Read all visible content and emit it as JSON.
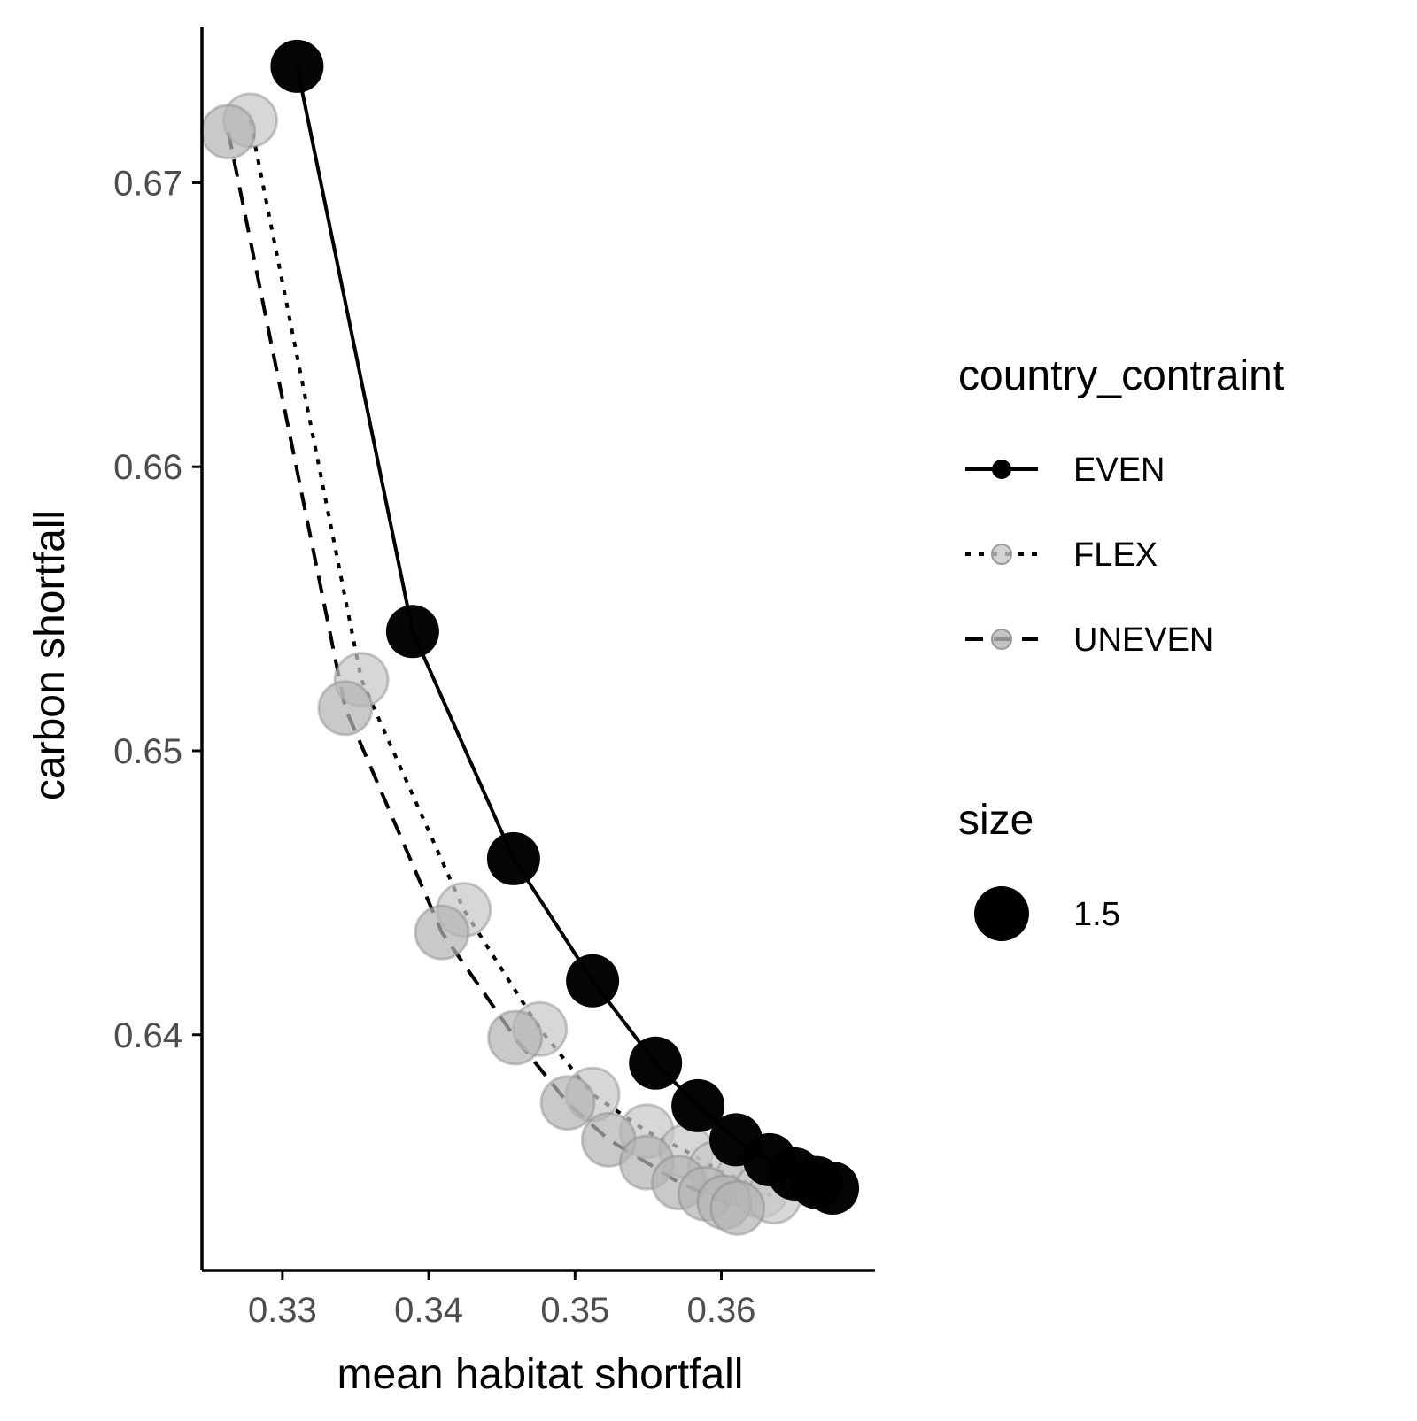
{
  "chart_data": {
    "type": "line",
    "xlabel": "mean habitat shortfall",
    "ylabel": "carbon shortfall",
    "xlim": [
      0.3245,
      0.3705
    ],
    "ylim": [
      0.6317,
      0.6755
    ],
    "xticks": [
      "0.33",
      "0.34",
      "0.35",
      "0.36"
    ],
    "yticks": [
      "0.64",
      "0.65",
      "0.66",
      "0.67"
    ],
    "grid": false,
    "series": [
      {
        "name": "EVEN",
        "linestyle": "solid",
        "color": "#000000",
        "x": [
          0.331,
          0.3389,
          0.3458,
          0.3512,
          0.3555,
          0.3584,
          0.361,
          0.3633,
          0.365,
          0.3665,
          0.3676
        ],
        "y": [
          0.6741,
          0.6542,
          0.6462,
          0.6419,
          0.639,
          0.6375,
          0.6363,
          0.6356,
          0.6351,
          0.6348,
          0.6346
        ]
      },
      {
        "name": "FLEX",
        "linestyle": "dotted",
        "color": "#c8c8c8",
        "x": [
          0.3278,
          0.3354,
          0.3424,
          0.3476,
          0.3512,
          0.3549,
          0.3576,
          0.3596,
          0.3614,
          0.3627,
          0.3636
        ],
        "y": [
          0.6722,
          0.6525,
          0.6444,
          0.6402,
          0.6379,
          0.6366,
          0.6359,
          0.6353,
          0.6349,
          0.6345,
          0.6343
        ]
      },
      {
        "name": "UNEVEN",
        "linestyle": "dashed",
        "color": "#b4b4b4",
        "x": [
          0.3263,
          0.3343,
          0.3409,
          0.3459,
          0.3495,
          0.3523,
          0.3549,
          0.3571,
          0.3589,
          0.3602,
          0.3611
        ],
        "y": [
          0.6718,
          0.6515,
          0.6436,
          0.6399,
          0.6376,
          0.6363,
          0.6355,
          0.6348,
          0.6344,
          0.6341,
          0.6339
        ]
      }
    ],
    "legend": {
      "position": "right",
      "color_title": "country_contraint",
      "size_title": "size",
      "size_label": "1.5"
    }
  }
}
